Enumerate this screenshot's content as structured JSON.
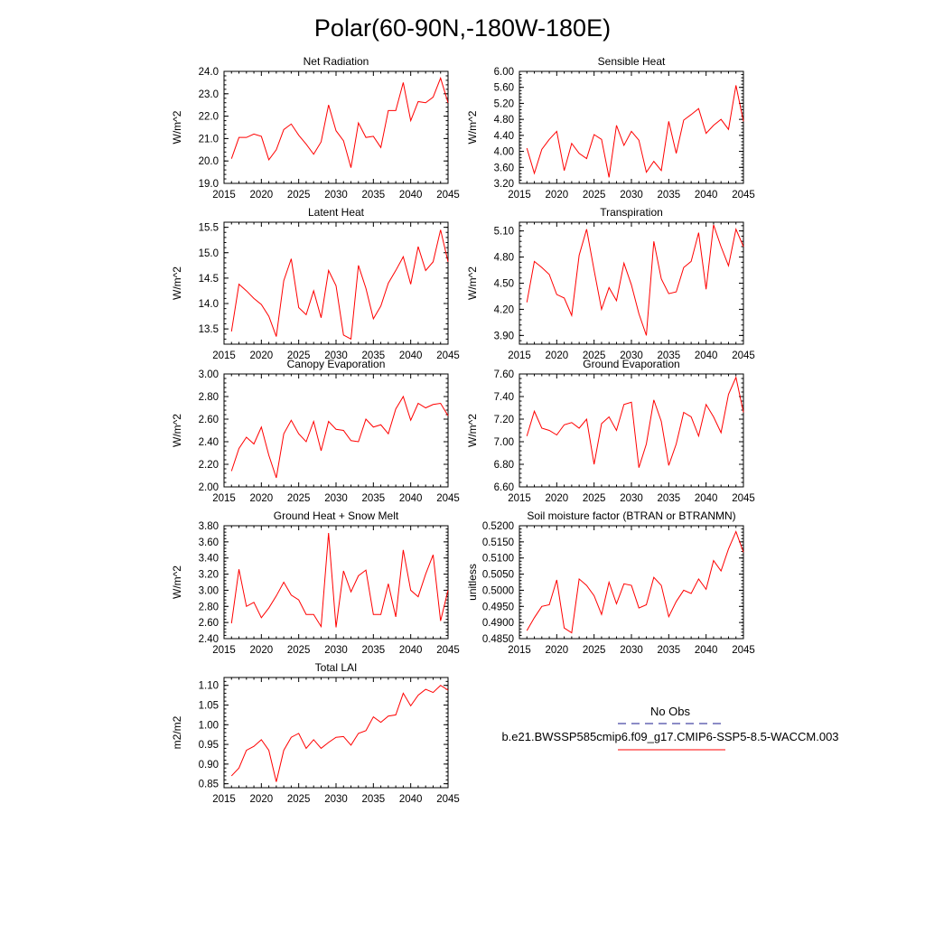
{
  "main_title": "Polar(60-90N,-180W-180E)",
  "legend": {
    "items": [
      {
        "label": "No Obs",
        "color": "#1a1a8c",
        "dash": true
      },
      {
        "label": "b.e21.BWSSP585cmip6.f09_g17.CMIP6-SSP5-8.5-WACCM.003",
        "color": "#ff0000",
        "dash": false
      }
    ]
  },
  "chart_data": [
    {
      "type": "line",
      "title": "Net Radiation",
      "xlabel": "",
      "ylabel": "W/m^2",
      "xlim": [
        2015,
        2045
      ],
      "ylim": [
        19.0,
        24.0
      ],
      "xticks": [
        2015,
        2020,
        2025,
        2030,
        2035,
        2040,
        2045
      ],
      "yticks": [
        "19.0",
        "20.0",
        "21.0",
        "22.0",
        "23.0",
        "24.0"
      ],
      "x": [
        2016,
        2017,
        2018,
        2019,
        2020,
        2021,
        2022,
        2023,
        2024,
        2025,
        2026,
        2027,
        2028,
        2029,
        2030,
        2031,
        2032,
        2033,
        2034,
        2035,
        2036,
        2037,
        2038,
        2039,
        2040,
        2041,
        2042,
        2043,
        2044,
        2045
      ],
      "series": [
        {
          "values": [
            20.1,
            21.05,
            21.05,
            21.2,
            21.1,
            20.05,
            20.5,
            21.4,
            21.65,
            21.15,
            20.75,
            20.3,
            20.85,
            22.5,
            21.35,
            20.9,
            19.7,
            21.7,
            21.05,
            21.1,
            20.6,
            22.25,
            22.25,
            23.5,
            21.8,
            22.65,
            22.6,
            22.85,
            23.7,
            22.6
          ]
        }
      ]
    },
    {
      "type": "line",
      "title": "Sensible Heat",
      "xlabel": "",
      "ylabel": "W/m^2",
      "xlim": [
        2015,
        2045
      ],
      "ylim": [
        3.2,
        6.0
      ],
      "xticks": [
        2015,
        2020,
        2025,
        2030,
        2035,
        2040,
        2045
      ],
      "yticks": [
        "3.20",
        "3.60",
        "4.00",
        "4.40",
        "4.80",
        "5.20",
        "5.60",
        "6.00"
      ],
      "x": [
        2016,
        2017,
        2018,
        2019,
        2020,
        2021,
        2022,
        2023,
        2024,
        2025,
        2026,
        2027,
        2028,
        2029,
        2030,
        2031,
        2032,
        2033,
        2034,
        2035,
        2036,
        2037,
        2038,
        2039,
        2040,
        2041,
        2042,
        2043,
        2044,
        2045
      ],
      "series": [
        {
          "values": [
            4.08,
            3.45,
            4.05,
            4.3,
            4.5,
            3.52,
            4.2,
            3.95,
            3.82,
            4.42,
            4.3,
            3.35,
            4.65,
            4.15,
            4.5,
            4.28,
            3.48,
            3.75,
            3.52,
            4.75,
            3.95,
            4.78,
            4.92,
            5.07,
            4.45,
            4.65,
            4.8,
            4.55,
            5.65,
            4.75
          ]
        }
      ]
    },
    {
      "type": "line",
      "title": "Latent Heat",
      "xlabel": "",
      "ylabel": "W/m^2",
      "xlim": [
        2015,
        2045
      ],
      "ylim": [
        13.2,
        15.6
      ],
      "xticks": [
        2015,
        2020,
        2025,
        2030,
        2035,
        2040,
        2045
      ],
      "yticks": [
        "13.5",
        "14.0",
        "14.5",
        "15.0",
        "15.5"
      ],
      "x": [
        2016,
        2017,
        2018,
        2019,
        2020,
        2021,
        2022,
        2023,
        2024,
        2025,
        2026,
        2027,
        2028,
        2029,
        2030,
        2031,
        2032,
        2033,
        2034,
        2035,
        2036,
        2037,
        2038,
        2039,
        2040,
        2041,
        2042,
        2043,
        2044,
        2045
      ],
      "series": [
        {
          "values": [
            13.45,
            14.38,
            14.25,
            14.1,
            13.98,
            13.75,
            13.35,
            14.45,
            14.88,
            13.92,
            13.78,
            14.25,
            13.72,
            14.65,
            14.35,
            13.38,
            13.3,
            14.75,
            14.3,
            13.7,
            13.95,
            14.4,
            14.65,
            14.92,
            14.38,
            15.12,
            14.65,
            14.82,
            15.45,
            14.82
          ]
        }
      ]
    },
    {
      "type": "line",
      "title": "Transpiration",
      "xlabel": "",
      "ylabel": "W/m^2",
      "xlim": [
        2015,
        2045
      ],
      "ylim": [
        3.8,
        5.2
      ],
      "xticks": [
        2015,
        2020,
        2025,
        2030,
        2035,
        2040,
        2045
      ],
      "yticks": [
        "3.90",
        "4.20",
        "4.50",
        "4.80",
        "5.10"
      ],
      "x": [
        2016,
        2017,
        2018,
        2019,
        2020,
        2021,
        2022,
        2023,
        2024,
        2025,
        2026,
        2027,
        2028,
        2029,
        2030,
        2031,
        2032,
        2033,
        2034,
        2035,
        2036,
        2037,
        2038,
        2039,
        2040,
        2041,
        2042,
        2043,
        2044,
        2045
      ],
      "series": [
        {
          "values": [
            4.28,
            4.75,
            4.68,
            4.6,
            4.37,
            4.33,
            4.13,
            4.82,
            5.12,
            4.65,
            4.2,
            4.45,
            4.3,
            4.73,
            4.48,
            4.15,
            3.9,
            4.98,
            4.55,
            4.38,
            4.4,
            4.68,
            4.75,
            5.08,
            4.43,
            5.17,
            4.92,
            4.7,
            5.12,
            4.92
          ]
        }
      ]
    },
    {
      "type": "line",
      "title": "Canopy Evaporation",
      "xlabel": "",
      "ylabel": "W/m^2",
      "xlim": [
        2015,
        2045
      ],
      "ylim": [
        2.0,
        3.0
      ],
      "xticks": [
        2015,
        2020,
        2025,
        2030,
        2035,
        2040,
        2045
      ],
      "yticks": [
        "2.00",
        "2.20",
        "2.40",
        "2.60",
        "2.80",
        "3.00"
      ],
      "x": [
        2016,
        2017,
        2018,
        2019,
        2020,
        2021,
        2022,
        2023,
        2024,
        2025,
        2026,
        2027,
        2028,
        2029,
        2030,
        2031,
        2032,
        2033,
        2034,
        2035,
        2036,
        2037,
        2038,
        2039,
        2040,
        2041,
        2042,
        2043,
        2044,
        2045
      ],
      "series": [
        {
          "values": [
            2.14,
            2.34,
            2.44,
            2.38,
            2.53,
            2.28,
            2.08,
            2.47,
            2.59,
            2.47,
            2.4,
            2.58,
            2.32,
            2.58,
            2.51,
            2.5,
            2.41,
            2.4,
            2.6,
            2.53,
            2.55,
            2.47,
            2.69,
            2.8,
            2.59,
            2.74,
            2.7,
            2.73,
            2.74,
            2.63
          ]
        }
      ]
    },
    {
      "type": "line",
      "title": "Ground Evaporation",
      "xlabel": "",
      "ylabel": "W/m^2",
      "xlim": [
        2015,
        2045
      ],
      "ylim": [
        6.6,
        7.6
      ],
      "xticks": [
        2015,
        2020,
        2025,
        2030,
        2035,
        2040,
        2045
      ],
      "yticks": [
        "6.60",
        "6.80",
        "7.00",
        "7.20",
        "7.40",
        "7.60"
      ],
      "x": [
        2016,
        2017,
        2018,
        2019,
        2020,
        2021,
        2022,
        2023,
        2024,
        2025,
        2026,
        2027,
        2028,
        2029,
        2030,
        2031,
        2032,
        2033,
        2034,
        2035,
        2036,
        2037,
        2038,
        2039,
        2040,
        2041,
        2042,
        2043,
        2044,
        2045
      ],
      "series": [
        {
          "values": [
            7.05,
            7.27,
            7.12,
            7.1,
            7.06,
            7.15,
            7.17,
            7.12,
            7.2,
            6.8,
            7.16,
            7.22,
            7.1,
            7.33,
            7.35,
            6.77,
            6.98,
            7.37,
            7.18,
            6.79,
            6.98,
            7.26,
            7.22,
            7.05,
            7.33,
            7.22,
            7.08,
            7.42,
            7.57,
            7.26
          ]
        }
      ]
    },
    {
      "type": "line",
      "title": "Ground Heat + Snow Melt",
      "xlabel": "",
      "ylabel": "W/m^2",
      "xlim": [
        2015,
        2045
      ],
      "ylim": [
        2.4,
        3.8
      ],
      "xticks": [
        2015,
        2020,
        2025,
        2030,
        2035,
        2040,
        2045
      ],
      "yticks": [
        "2.40",
        "2.60",
        "2.80",
        "3.00",
        "3.20",
        "3.40",
        "3.60",
        "3.80"
      ],
      "x": [
        2016,
        2017,
        2018,
        2019,
        2020,
        2021,
        2022,
        2023,
        2024,
        2025,
        2026,
        2027,
        2028,
        2029,
        2030,
        2031,
        2032,
        2033,
        2034,
        2035,
        2036,
        2037,
        2038,
        2039,
        2040,
        2041,
        2042,
        2043,
        2044,
        2045
      ],
      "series": [
        {
          "values": [
            2.59,
            3.26,
            2.8,
            2.85,
            2.66,
            2.78,
            2.93,
            3.1,
            2.94,
            2.88,
            2.7,
            2.7,
            2.55,
            3.71,
            2.54,
            3.24,
            2.98,
            3.18,
            3.25,
            2.7,
            2.7,
            3.08,
            2.67,
            3.5,
            3.0,
            2.92,
            3.2,
            3.44,
            2.62,
            3.0
          ]
        }
      ]
    },
    {
      "type": "line",
      "title": "Soil moisture factor (BTRAN or BTRANMN)",
      "xlabel": "",
      "ylabel": "unitless",
      "xlim": [
        2015,
        2045
      ],
      "ylim": [
        0.485,
        0.52
      ],
      "xticks": [
        2015,
        2020,
        2025,
        2030,
        2035,
        2040,
        2045
      ],
      "yticks": [
        "0.4850",
        "0.4900",
        "0.4950",
        "0.5000",
        "0.5050",
        "0.5100",
        "0.5150",
        "0.5200"
      ],
      "x": [
        2016,
        2017,
        2018,
        2019,
        2020,
        2021,
        2022,
        2023,
        2024,
        2025,
        2026,
        2027,
        2028,
        2029,
        2030,
        2031,
        2032,
        2033,
        2034,
        2035,
        2036,
        2037,
        2038,
        2039,
        2040,
        2041,
        2042,
        2043,
        2044,
        2045
      ],
      "series": [
        {
          "values": [
            0.4875,
            0.4915,
            0.495,
            0.4955,
            0.5032,
            0.4883,
            0.4868,
            0.5035,
            0.5015,
            0.4983,
            0.4925,
            0.5025,
            0.4958,
            0.502,
            0.5015,
            0.4945,
            0.4955,
            0.504,
            0.5015,
            0.4918,
            0.4965,
            0.5,
            0.499,
            0.5035,
            0.5003,
            0.5092,
            0.506,
            0.5128,
            0.5182,
            0.5118
          ]
        }
      ]
    },
    {
      "type": "line",
      "title": "Total LAI",
      "xlabel": "",
      "ylabel": "m2/m2",
      "xlim": [
        2015,
        2045
      ],
      "ylim": [
        0.84,
        1.12
      ],
      "xticks": [
        2015,
        2020,
        2025,
        2030,
        2035,
        2040,
        2045
      ],
      "yticks": [
        "0.85",
        "0.90",
        "0.95",
        "1.00",
        "1.05",
        "1.10"
      ],
      "x": [
        2016,
        2017,
        2018,
        2019,
        2020,
        2021,
        2022,
        2023,
        2024,
        2025,
        2026,
        2027,
        2028,
        2029,
        2030,
        2031,
        2032,
        2033,
        2034,
        2035,
        2036,
        2037,
        2038,
        2039,
        2040,
        2041,
        2042,
        2043,
        2044,
        2045
      ],
      "series": [
        {
          "values": [
            0.87,
            0.89,
            0.935,
            0.945,
            0.962,
            0.935,
            0.855,
            0.935,
            0.968,
            0.978,
            0.94,
            0.962,
            0.94,
            0.955,
            0.968,
            0.97,
            0.948,
            0.978,
            0.985,
            1.02,
            1.006,
            1.022,
            1.025,
            1.08,
            1.048,
            1.075,
            1.09,
            1.082,
            1.1,
            1.088
          ]
        }
      ]
    }
  ]
}
